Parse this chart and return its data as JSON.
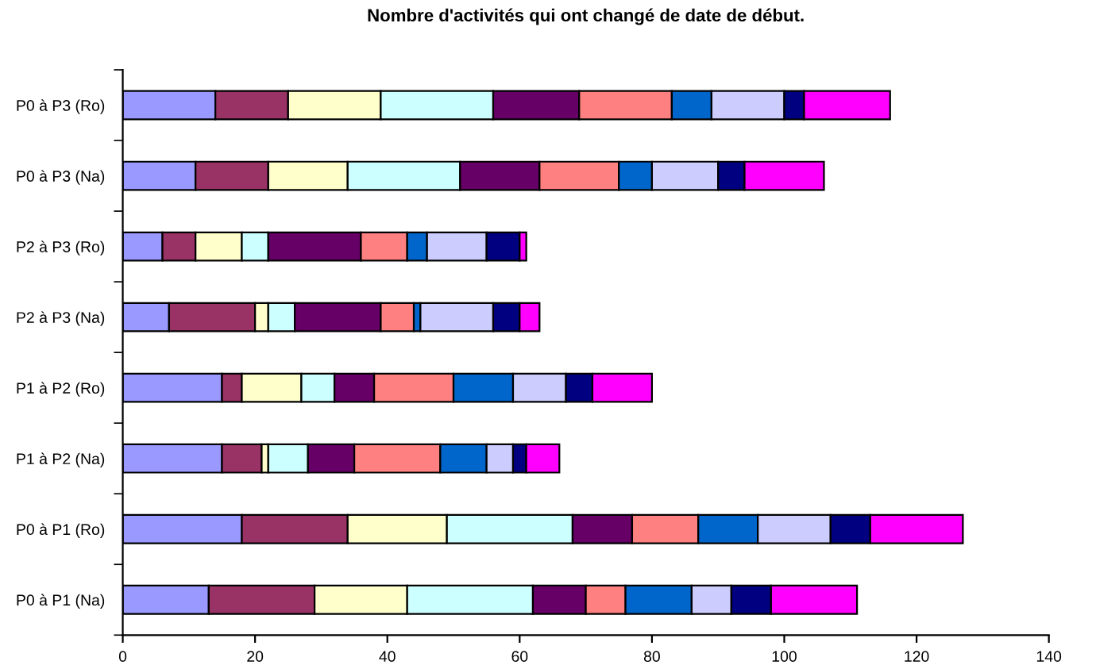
{
  "chart_data": {
    "type": "bar",
    "orientation": "horizontal",
    "stacked": true,
    "title": "Nombre d'activités qui ont changé de date de début.",
    "categories": [
      "P0 à P3 (Ro)",
      "P0 à P3 (Na)",
      "P2 à P3 (Ro)",
      "P2 à P3 (Na)",
      "P1 à P2 (Ro)",
      "P1 à P2 (Na)",
      "P0 à P1 (Ro)",
      "P0 à P1 (Na)"
    ],
    "series": [
      {
        "color": "#9999ff",
        "values": [
          14,
          11,
          6,
          7,
          15,
          15,
          18,
          13
        ]
      },
      {
        "color": "#993366",
        "values": [
          11,
          11,
          5,
          13,
          3,
          6,
          16,
          16
        ]
      },
      {
        "color": "#ffffcc",
        "values": [
          14,
          12,
          7,
          2,
          9,
          1,
          15,
          14
        ]
      },
      {
        "color": "#ccffff",
        "values": [
          17,
          17,
          4,
          4,
          5,
          6,
          19,
          19
        ]
      },
      {
        "color": "#660066",
        "values": [
          13,
          12,
          14,
          13,
          6,
          7,
          9,
          8
        ]
      },
      {
        "color": "#ff8080",
        "values": [
          14,
          12,
          7,
          5,
          12,
          13,
          10,
          6
        ]
      },
      {
        "color": "#0066cc",
        "values": [
          6,
          5,
          3,
          1,
          9,
          7,
          9,
          10
        ]
      },
      {
        "color": "#ccccff",
        "values": [
          11,
          10,
          9,
          11,
          8,
          4,
          11,
          6
        ]
      },
      {
        "color": "#000080",
        "values": [
          3,
          4,
          5,
          4,
          4,
          2,
          6,
          6
        ]
      },
      {
        "color": "#ff00ff",
        "values": [
          13,
          12,
          1,
          3,
          9,
          5,
          14,
          13
        ]
      }
    ],
    "xlim": [
      0,
      140
    ],
    "xticks": [
      0,
      20,
      40,
      60,
      80,
      100,
      120,
      140
    ],
    "grid": false,
    "legend": false
  }
}
